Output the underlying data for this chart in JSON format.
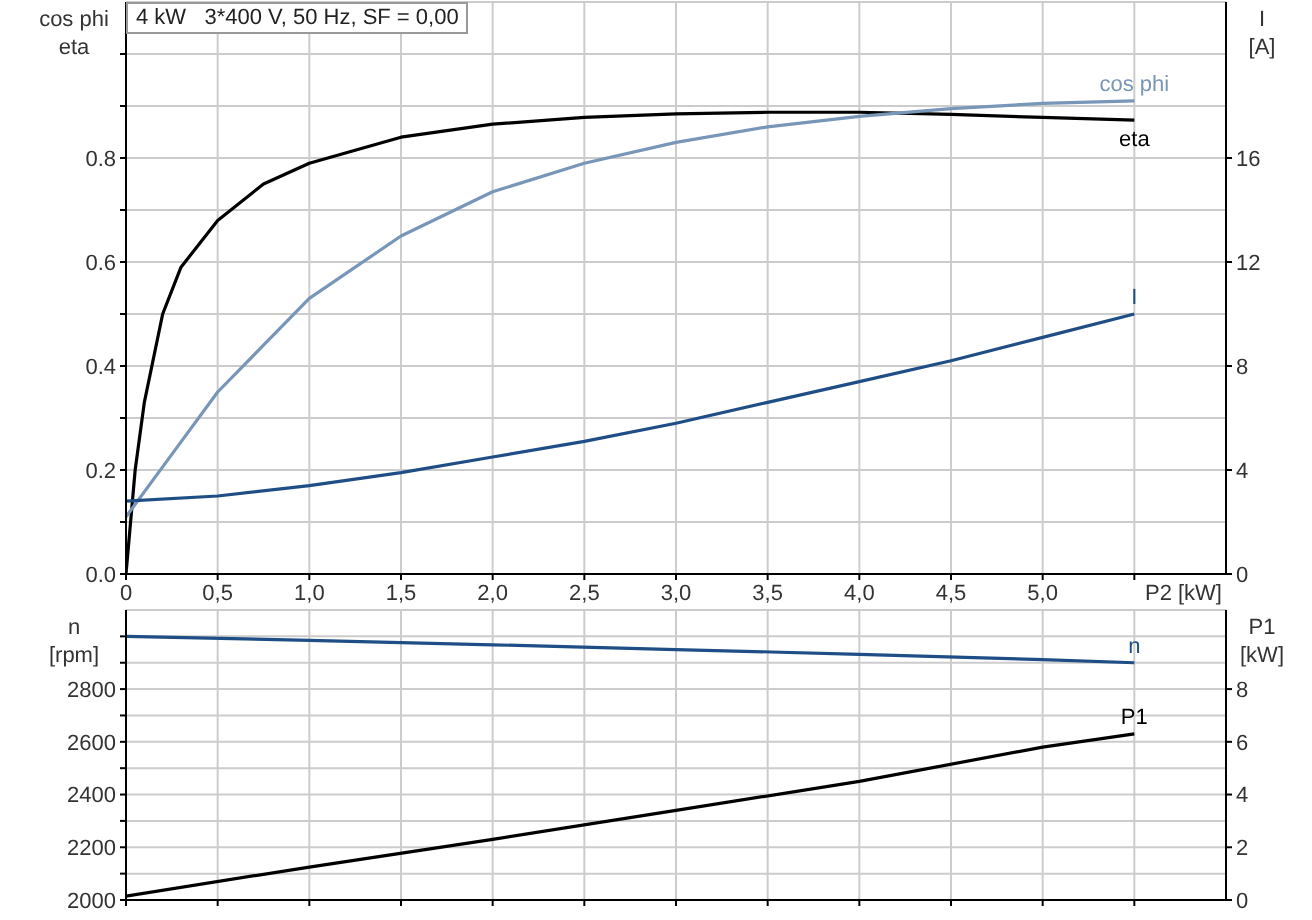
{
  "chart_data": [
    {
      "type": "line",
      "title": "4 kW   3*400 V, 50 Hz, SF = 0,00",
      "ylabel": "cos phi\neta",
      "y2label": "I\n[A]",
      "xlabel": "P2 [kW]",
      "xlim": [
        0,
        6
      ],
      "xticks": [
        0,
        {
          "value": 0.5,
          "label": "0,5"
        },
        {
          "value": 1,
          "label": "1,0"
        },
        {
          "value": 1.5,
          "label": "1,5"
        },
        {
          "value": 2,
          "label": "2,0"
        },
        {
          "value": 2.5,
          "label": "2,5"
        },
        {
          "value": 3,
          "label": "3,0"
        },
        {
          "value": 3.5,
          "label": "3,5"
        },
        {
          "value": 4,
          "label": "4,0"
        },
        {
          "value": 4.5,
          "label": "4,5"
        },
        {
          "value": 5,
          "label": "5,0"
        },
        {
          "value": 5.5,
          "label": null
        }
      ],
      "ylim": [
        0,
        1.1
      ],
      "yticks": [
        {
          "value": 0,
          "label": "0.0"
        },
        {
          "value": 0.1,
          "label": null
        },
        0.2,
        {
          "value": 0.3,
          "label": null
        },
        0.4,
        {
          "value": 0.5,
          "label": null
        },
        0.6,
        {
          "value": 0.7,
          "label": null
        },
        0.8,
        {
          "value": 0.9,
          "label": null
        },
        {
          "value": 1.0,
          "label": null
        }
      ],
      "y2lim": [
        0,
        22
      ],
      "y2ticks": [
        0,
        4,
        8,
        12,
        16
      ],
      "grid": true,
      "marker": "none",
      "line_style": "solid",
      "series": [
        {
          "name": "eta",
          "color": "#000000",
          "x": [
            0,
            0.05,
            0.1,
            0.2,
            0.3,
            0.5,
            0.75,
            1,
            1.5,
            2,
            2.5,
            3,
            3.5,
            4,
            4.5,
            5,
            5.5
          ],
          "values": [
            0,
            0.2,
            0.33,
            0.5,
            0.59,
            0.68,
            0.75,
            0.79,
            0.84,
            0.865,
            0.878,
            0.885,
            0.888,
            0.888,
            0.884,
            0.878,
            0.873
          ]
        },
        {
          "name": "cos phi",
          "color": "#7896b8",
          "x": [
            0,
            0.25,
            0.5,
            0.75,
            1,
            1.5,
            2,
            2.5,
            3,
            3.5,
            4,
            4.5,
            5,
            5.5
          ],
          "values": [
            0.11,
            0.23,
            0.35,
            0.44,
            0.53,
            0.65,
            0.735,
            0.79,
            0.83,
            0.86,
            0.88,
            0.895,
            0.905,
            0.91
          ]
        },
        {
          "name": "I",
          "color": "#1f4e86",
          "axis": "y2",
          "x": [
            0,
            0.5,
            1,
            1.5,
            2,
            2.5,
            3,
            3.5,
            4,
            4.5,
            5,
            5.5
          ],
          "values": [
            2.8,
            3.0,
            3.4,
            3.9,
            4.5,
            5.1,
            5.8,
            6.6,
            7.4,
            8.2,
            9.1,
            10.0
          ]
        }
      ]
    },
    {
      "type": "line",
      "ylabel": "n\n[rpm]",
      "y2label": "P1\n[kW]",
      "tick_labels": "y",
      "xlim": [
        0,
        6
      ],
      "xticks": [
        0,
        0.5,
        1,
        1.5,
        2,
        2.5,
        3,
        3.5,
        4,
        4.5,
        5,
        5.5
      ],
      "ylim": [
        2000,
        3100
      ],
      "yticks": [
        2000,
        {
          "value": 2100,
          "label": null
        },
        2200,
        {
          "value": 2300,
          "label": null
        },
        2400,
        {
          "value": 2500,
          "label": null
        },
        2600,
        {
          "value": 2700,
          "label": null
        },
        2800,
        {
          "value": 2900,
          "label": null
        },
        {
          "value": 3000,
          "label": null
        }
      ],
      "y2lim": [
        0,
        11
      ],
      "y2ticks": [
        0,
        2,
        4,
        6,
        8
      ],
      "grid": true,
      "marker": "none",
      "line_style": "solid",
      "series": [
        {
          "name": "n",
          "color": "#1f4e86",
          "x": [
            0,
            1,
            2,
            3,
            4,
            5,
            5.5
          ],
          "values": [
            3000,
            2985,
            2968,
            2950,
            2932,
            2912,
            2900
          ]
        },
        {
          "name": "P1",
          "color": "#000000",
          "axis": "y2",
          "x": [
            0,
            1,
            2,
            3,
            4,
            5,
            5.5
          ],
          "values": [
            0.15,
            1.25,
            2.3,
            3.4,
            4.5,
            5.8,
            6.3
          ]
        }
      ]
    }
  ]
}
